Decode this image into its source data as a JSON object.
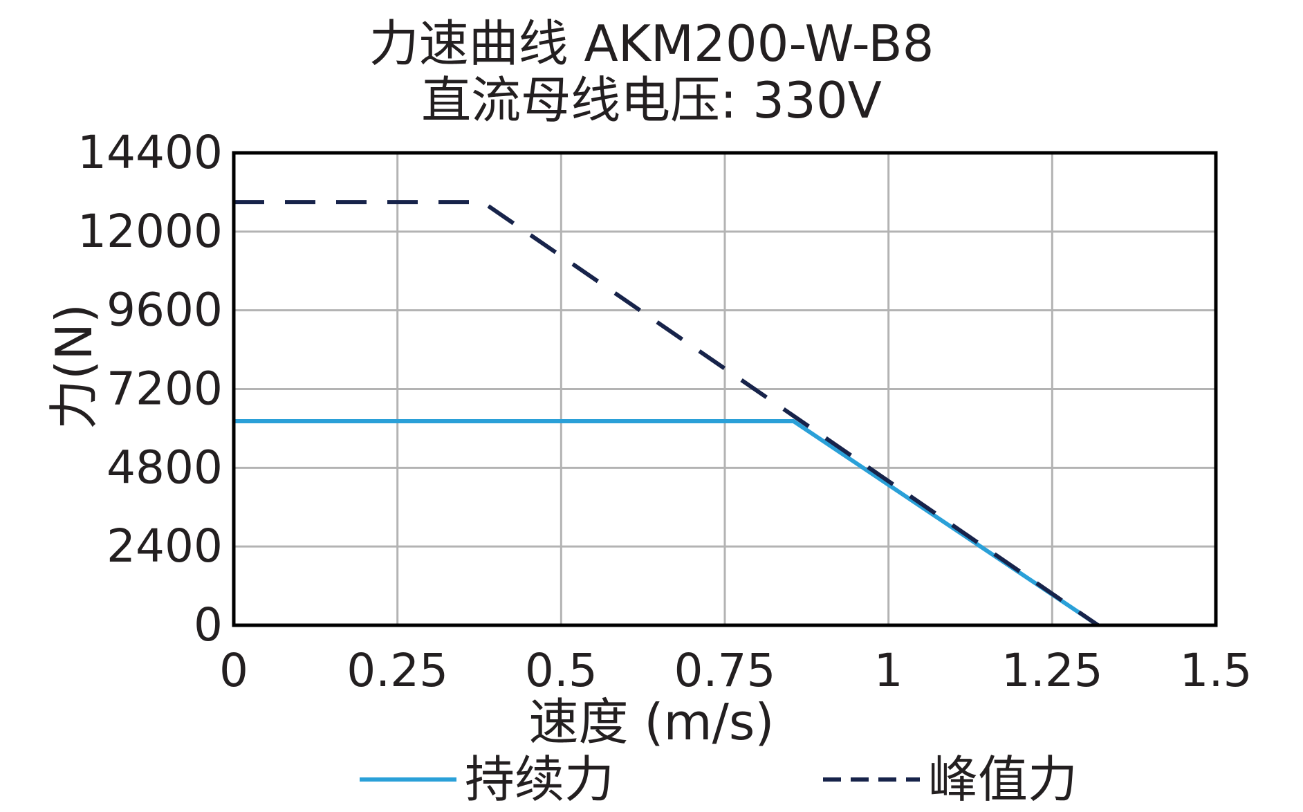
{
  "chart_data": {
    "type": "line",
    "title": "力速曲线 AKM200-W-B8",
    "subtitle": "直流母线电压: 330V",
    "xlabel": "速度 (m/s)",
    "ylabel": "力(N)",
    "xlim": [
      0,
      1.5
    ],
    "ylim": [
      0,
      14400
    ],
    "x_ticks": [
      0,
      0.25,
      0.5,
      0.75,
      1,
      1.25,
      1.5
    ],
    "x_tick_labels": [
      "0",
      "0.25",
      "0.5",
      "0.75",
      "1",
      "1.25",
      "1.5"
    ],
    "y_ticks": [
      0,
      2400,
      4800,
      7200,
      9600,
      12000,
      14400
    ],
    "y_tick_labels": [
      "0",
      "2400",
      "4800",
      "7200",
      "9600",
      "12000",
      "14400"
    ],
    "grid": true,
    "legend_position": "bottom",
    "series": [
      {
        "name": "持续力",
        "style": "solid",
        "color": "#2aa0d8",
        "points": [
          [
            0,
            6220
          ],
          [
            0.855,
            6220
          ],
          [
            1.32,
            0
          ]
        ]
      },
      {
        "name": "峰值力",
        "style": "dashed",
        "color": "#17234a",
        "points": [
          [
            0,
            12900
          ],
          [
            0.38,
            12900
          ],
          [
            1.32,
            0
          ]
        ]
      }
    ]
  }
}
